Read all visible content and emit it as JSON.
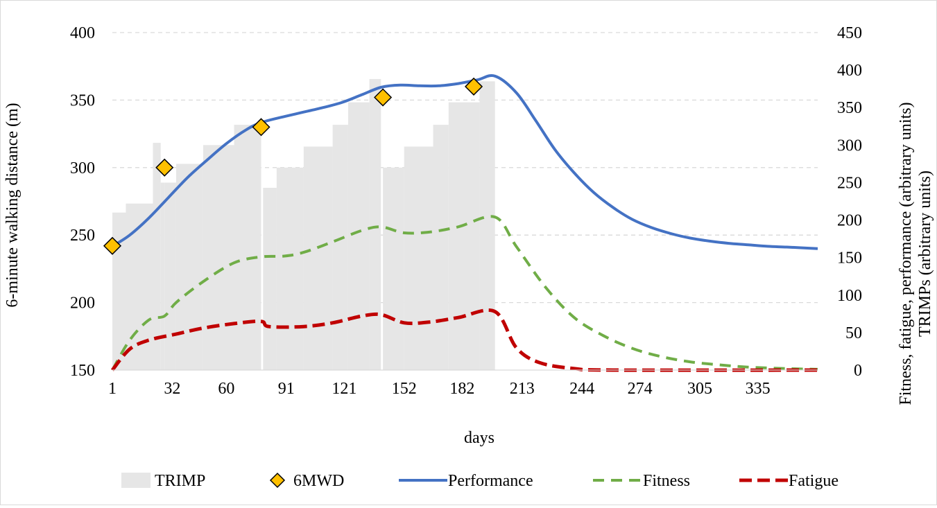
{
  "chart_data": {
    "type": "combo",
    "xlabel": "days",
    "y_left_label": "6-minute walking distance (m)",
    "y_right_label_line1": "Fitness, fatigue, performance (arbitrary units)",
    "y_right_label_line2": "TRIMPs (arbitrary units)",
    "x_range": [
      1,
      366
    ],
    "x_ticks": [
      "1",
      "32",
      "60",
      "91",
      "121",
      "152",
      "182",
      "213",
      "244",
      "274",
      "305",
      "335"
    ],
    "x_tick_values": [
      1,
      32,
      60,
      91,
      121,
      152,
      182,
      213,
      244,
      274,
      305,
      335
    ],
    "y_left_range": [
      150,
      400
    ],
    "y_left_ticks": [
      "150",
      "200",
      "250",
      "300",
      "350",
      "400"
    ],
    "y_left_tick_values": [
      150,
      200,
      250,
      300,
      350,
      400
    ],
    "y_right_range": [
      0,
      450
    ],
    "y_right_ticks": [
      "0",
      "50",
      "100",
      "150",
      "200",
      "250",
      "300",
      "350",
      "400",
      "450"
    ],
    "y_right_tick_values": [
      0,
      50,
      100,
      150,
      200,
      250,
      300,
      350,
      400,
      450
    ],
    "grid": "horizontal dashed",
    "legend_position": "bottom",
    "colors": {
      "trimp": "#e6e6e6",
      "sixmwd_fill": "#ffc000",
      "sixmwd_stroke": "#000000",
      "performance": "#4472c4",
      "fitness": "#70ad47",
      "fatigue": "#c00000",
      "grid": "#d9d9d9"
    },
    "legend": [
      {
        "key": "trimp",
        "label": "TRIMP"
      },
      {
        "key": "sixmwd",
        "label": "6MWD"
      },
      {
        "key": "performance",
        "label": "Performance"
      },
      {
        "key": "fitness",
        "label": "Fitness"
      },
      {
        "key": "fatigue",
        "label": "Fatigue"
      }
    ],
    "trimp_blocks": [
      {
        "from": 1,
        "to": 8,
        "value": 210
      },
      {
        "from": 8,
        "to": 22,
        "value": 222
      },
      {
        "from": 22,
        "to": 26,
        "value": 303
      },
      {
        "from": 26,
        "to": 28,
        "value": 250
      },
      {
        "from": 28,
        "to": 34,
        "value": 250
      },
      {
        "from": 34,
        "to": 48,
        "value": 275
      },
      {
        "from": 48,
        "to": 64,
        "value": 300
      },
      {
        "from": 64,
        "to": 78,
        "value": 327
      },
      {
        "from": 79,
        "to": 86,
        "value": 243
      },
      {
        "from": 86,
        "to": 100,
        "value": 270
      },
      {
        "from": 100,
        "to": 115,
        "value": 298
      },
      {
        "from": 115,
        "to": 123,
        "value": 327
      },
      {
        "from": 123,
        "to": 134,
        "value": 357
      },
      {
        "from": 134,
        "to": 140,
        "value": 388
      },
      {
        "from": 141,
        "to": 152,
        "value": 270
      },
      {
        "from": 152,
        "to": 167,
        "value": 298
      },
      {
        "from": 167,
        "to": 175,
        "value": 327
      },
      {
        "from": 175,
        "to": 191,
        "value": 357
      },
      {
        "from": 191,
        "to": 199,
        "value": 385
      }
    ],
    "sixmwd": [
      {
        "x": 1,
        "y": 242
      },
      {
        "x": 28,
        "y": 300
      },
      {
        "x": 78,
        "y": 330
      },
      {
        "x": 141,
        "y": 352
      },
      {
        "x": 188,
        "y": 360
      }
    ],
    "performance": [
      {
        "x": 1,
        "y": 165
      },
      {
        "x": 10,
        "y": 180
      },
      {
        "x": 20,
        "y": 203
      },
      {
        "x": 30,
        "y": 230
      },
      {
        "x": 40,
        "y": 257
      },
      {
        "x": 50,
        "y": 280
      },
      {
        "x": 60,
        "y": 302
      },
      {
        "x": 70,
        "y": 320
      },
      {
        "x": 78,
        "y": 330
      },
      {
        "x": 90,
        "y": 338
      },
      {
        "x": 100,
        "y": 344
      },
      {
        "x": 110,
        "y": 350
      },
      {
        "x": 120,
        "y": 357
      },
      {
        "x": 130,
        "y": 367
      },
      {
        "x": 140,
        "y": 377
      },
      {
        "x": 150,
        "y": 380
      },
      {
        "x": 160,
        "y": 379
      },
      {
        "x": 170,
        "y": 379
      },
      {
        "x": 180,
        "y": 382
      },
      {
        "x": 190,
        "y": 387
      },
      {
        "x": 199,
        "y": 392
      },
      {
        "x": 210,
        "y": 370
      },
      {
        "x": 220,
        "y": 333
      },
      {
        "x": 230,
        "y": 294
      },
      {
        "x": 240,
        "y": 263
      },
      {
        "x": 250,
        "y": 237
      },
      {
        "x": 260,
        "y": 217
      },
      {
        "x": 270,
        "y": 201
      },
      {
        "x": 280,
        "y": 190
      },
      {
        "x": 290,
        "y": 182
      },
      {
        "x": 300,
        "y": 176
      },
      {
        "x": 310,
        "y": 172
      },
      {
        "x": 320,
        "y": 169
      },
      {
        "x": 330,
        "y": 167
      },
      {
        "x": 340,
        "y": 165
      },
      {
        "x": 350,
        "y": 164
      },
      {
        "x": 366,
        "y": 162
      }
    ],
    "fitness": [
      {
        "x": 1,
        "y": 0
      },
      {
        "x": 10,
        "y": 40
      },
      {
        "x": 20,
        "y": 67
      },
      {
        "x": 28,
        "y": 72
      },
      {
        "x": 34,
        "y": 90
      },
      {
        "x": 48,
        "y": 118
      },
      {
        "x": 64,
        "y": 143
      },
      {
        "x": 78,
        "y": 151
      },
      {
        "x": 90,
        "y": 152
      },
      {
        "x": 100,
        "y": 157
      },
      {
        "x": 115,
        "y": 171
      },
      {
        "x": 130,
        "y": 186
      },
      {
        "x": 140,
        "y": 191
      },
      {
        "x": 152,
        "y": 183
      },
      {
        "x": 165,
        "y": 184
      },
      {
        "x": 180,
        "y": 191
      },
      {
        "x": 199,
        "y": 204
      },
      {
        "x": 210,
        "y": 165
      },
      {
        "x": 225,
        "y": 111
      },
      {
        "x": 240,
        "y": 70
      },
      {
        "x": 255,
        "y": 46
      },
      {
        "x": 270,
        "y": 29
      },
      {
        "x": 285,
        "y": 18
      },
      {
        "x": 300,
        "y": 11
      },
      {
        "x": 315,
        "y": 7
      },
      {
        "x": 330,
        "y": 4
      },
      {
        "x": 350,
        "y": 2
      },
      {
        "x": 366,
        "y": 1
      }
    ],
    "fatigue": [
      {
        "x": 1,
        "y": 0
      },
      {
        "x": 10,
        "y": 28
      },
      {
        "x": 20,
        "y": 40
      },
      {
        "x": 34,
        "y": 48
      },
      {
        "x": 48,
        "y": 56
      },
      {
        "x": 64,
        "y": 62
      },
      {
        "x": 78,
        "y": 65
      },
      {
        "x": 82,
        "y": 58
      },
      {
        "x": 100,
        "y": 58
      },
      {
        "x": 115,
        "y": 63
      },
      {
        "x": 130,
        "y": 72
      },
      {
        "x": 140,
        "y": 74
      },
      {
        "x": 152,
        "y": 63
      },
      {
        "x": 165,
        "y": 64
      },
      {
        "x": 180,
        "y": 70
      },
      {
        "x": 199,
        "y": 78
      },
      {
        "x": 210,
        "y": 30
      },
      {
        "x": 222,
        "y": 10
      },
      {
        "x": 240,
        "y": 2
      },
      {
        "x": 260,
        "y": 0
      },
      {
        "x": 366,
        "y": 0
      }
    ]
  }
}
